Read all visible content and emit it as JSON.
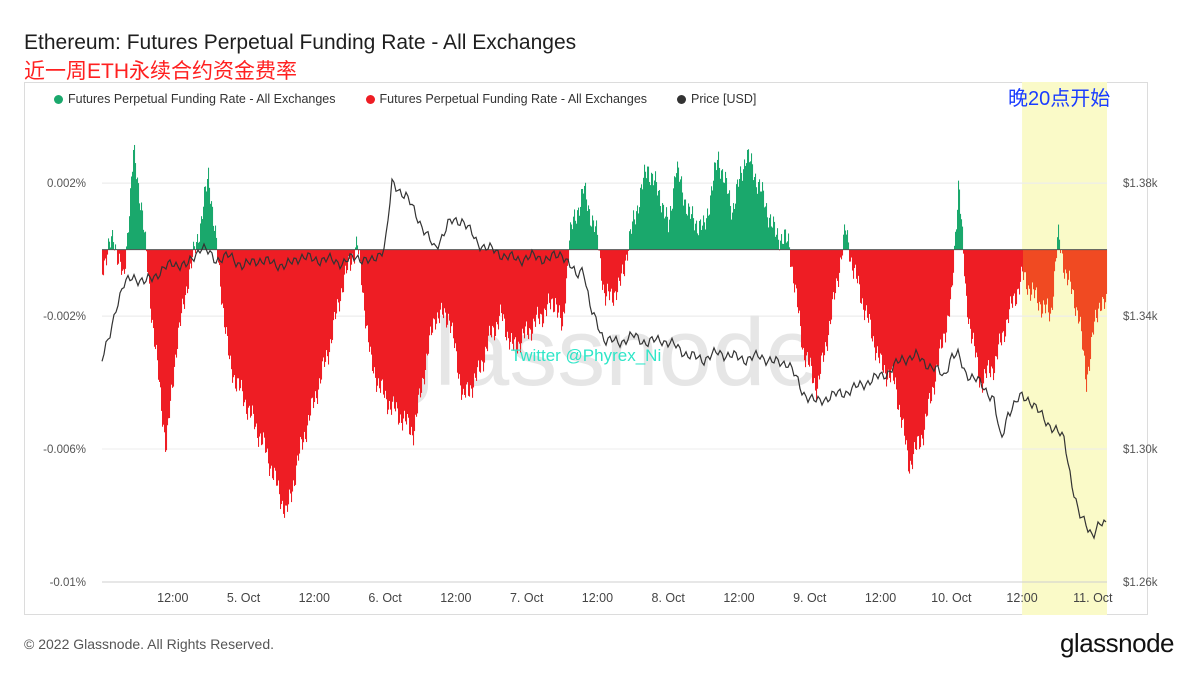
{
  "header": {
    "title": "Ethereum: Futures Perpetual Funding Rate - All Exchanges",
    "subtitle": "近一周ETH永续合约资金费率"
  },
  "annotation": {
    "note": "晚20点开始",
    "watermark_user": "Twitter @Phyrex_Ni",
    "watermark_brand": "glassnode"
  },
  "footer": {
    "copyright": "© 2022 Glassnode. All Rights Reserved.",
    "brand": "glassnode"
  },
  "colors": {
    "positive": "#1aa86c",
    "negative": "#ee1d24",
    "negative_highlight": "#f04a22",
    "price": "#333333",
    "highlight_band": "#fafac8"
  },
  "chart_data": {
    "type": "bar",
    "legend_placement": "top-left",
    "legend": [
      "Futures Perpetual Funding Rate - All Exchanges",
      "Futures Perpetual Funding Rate - All Exchanges",
      "Price [USD]"
    ],
    "x_ticks": [
      "12:00",
      "5. Oct",
      "12:00",
      "6. Oct",
      "12:00",
      "7. Oct",
      "12:00",
      "8. Oct",
      "12:00",
      "9. Oct",
      "12:00",
      "10. Oct",
      "12:00",
      "11. Oct"
    ],
    "x_range_days": [
      4.0,
      11.1
    ],
    "y_left": {
      "ticks": [
        "0.002%",
        "-0.002%",
        "-0.006%",
        "-0.01%"
      ],
      "tick_values": [
        0.002,
        -0.002,
        -0.006,
        -0.01
      ],
      "range": [
        -0.01,
        0.0042
      ]
    },
    "y_right": {
      "ticks": [
        "$1.38k",
        "$1.34k",
        "$1.30k",
        "$1.26k"
      ],
      "tick_values": [
        1380,
        1340,
        1300,
        1260
      ],
      "range": [
        1260,
        1402
      ]
    },
    "highlight_range_days": [
      10.5,
      11.1
    ],
    "funding_rate_keypoints_pct": [
      [
        4.0,
        -0.0005
      ],
      [
        4.08,
        0.0004
      ],
      [
        4.15,
        -0.001
      ],
      [
        4.22,
        0.0029
      ],
      [
        4.28,
        0.0012
      ],
      [
        4.35,
        -0.002
      ],
      [
        4.45,
        -0.006
      ],
      [
        4.52,
        -0.003
      ],
      [
        4.6,
        -0.001
      ],
      [
        4.7,
        0.0009
      ],
      [
        4.75,
        0.0023
      ],
      [
        4.82,
        -0.0005
      ],
      [
        4.9,
        -0.0035
      ],
      [
        5.0,
        -0.0045
      ],
      [
        5.15,
        -0.006
      ],
      [
        5.3,
        -0.008
      ],
      [
        5.4,
        -0.006
      ],
      [
        5.5,
        -0.0045
      ],
      [
        5.6,
        -0.003
      ],
      [
        5.7,
        -0.001
      ],
      [
        5.8,
        0.0002
      ],
      [
        5.9,
        -0.0035
      ],
      [
        6.0,
        -0.0045
      ],
      [
        6.1,
        -0.005
      ],
      [
        6.2,
        -0.0055
      ],
      [
        6.28,
        -0.0035
      ],
      [
        6.35,
        -0.002
      ],
      [
        6.45,
        -0.002
      ],
      [
        6.55,
        -0.0045
      ],
      [
        6.65,
        -0.0038
      ],
      [
        6.75,
        -0.0025
      ],
      [
        6.82,
        -0.002
      ],
      [
        6.9,
        -0.003
      ],
      [
        7.0,
        -0.0025
      ],
      [
        7.1,
        -0.002
      ],
      [
        7.2,
        -0.0015
      ],
      [
        7.25,
        -0.0025
      ],
      [
        7.3,
        0.0004
      ],
      [
        7.4,
        0.0018
      ],
      [
        7.5,
        0.0003
      ],
      [
        7.55,
        -0.0015
      ],
      [
        7.65,
        -0.0012
      ],
      [
        7.75,
        0.0008
      ],
      [
        7.85,
        0.0025
      ],
      [
        7.95,
        0.0015
      ],
      [
        8.0,
        0.0006
      ],
      [
        8.05,
        0.0025
      ],
      [
        8.15,
        0.001
      ],
      [
        8.25,
        0.0006
      ],
      [
        8.35,
        0.0028
      ],
      [
        8.45,
        0.0012
      ],
      [
        8.55,
        0.0029
      ],
      [
        8.65,
        0.0018
      ],
      [
        8.75,
        0.0005
      ],
      [
        8.85,
        0.0002
      ],
      [
        8.95,
        -0.003
      ],
      [
        9.05,
        -0.0042
      ],
      [
        9.15,
        -0.002
      ],
      [
        9.25,
        0.0006
      ],
      [
        9.3,
        -0.0005
      ],
      [
        9.4,
        -0.002
      ],
      [
        9.5,
        -0.0035
      ],
      [
        9.6,
        -0.004
      ],
      [
        9.7,
        -0.0065
      ],
      [
        9.8,
        -0.0055
      ],
      [
        9.9,
        -0.0035
      ],
      [
        10.0,
        -0.0015
      ],
      [
        10.05,
        0.0022
      ],
      [
        10.1,
        -0.0015
      ],
      [
        10.2,
        -0.004
      ],
      [
        10.3,
        -0.0035
      ],
      [
        10.4,
        -0.002
      ],
      [
        10.5,
        -0.0008
      ],
      [
        10.6,
        -0.0015
      ],
      [
        10.7,
        -0.002
      ],
      [
        10.75,
        0.0004
      ],
      [
        10.8,
        -0.0006
      ],
      [
        10.9,
        -0.002
      ],
      [
        10.95,
        -0.004
      ],
      [
        11.0,
        -0.0025
      ],
      [
        11.05,
        -0.0015
      ],
      [
        11.1,
        -0.0018
      ]
    ],
    "price_keypoints_usd": [
      [
        4.0,
        1327
      ],
      [
        4.05,
        1333
      ],
      [
        4.1,
        1343
      ],
      [
        4.15,
        1349
      ],
      [
        4.22,
        1352
      ],
      [
        4.3,
        1350
      ],
      [
        4.4,
        1353
      ],
      [
        4.5,
        1356
      ],
      [
        4.6,
        1355
      ],
      [
        4.7,
        1361
      ],
      [
        4.8,
        1357
      ],
      [
        4.9,
        1358
      ],
      [
        5.0,
        1355
      ],
      [
        5.1,
        1357
      ],
      [
        5.2,
        1356
      ],
      [
        5.3,
        1355
      ],
      [
        5.4,
        1358
      ],
      [
        5.5,
        1357
      ],
      [
        5.6,
        1357
      ],
      [
        5.7,
        1356
      ],
      [
        5.8,
        1358
      ],
      [
        5.9,
        1356
      ],
      [
        6.0,
        1361
      ],
      [
        6.05,
        1380
      ],
      [
        6.15,
        1376
      ],
      [
        6.25,
        1368
      ],
      [
        6.35,
        1360
      ],
      [
        6.45,
        1368
      ],
      [
        6.55,
        1369
      ],
      [
        6.65,
        1362
      ],
      [
        6.75,
        1360
      ],
      [
        6.85,
        1358
      ],
      [
        6.95,
        1357
      ],
      [
        7.05,
        1358
      ],
      [
        7.15,
        1357
      ],
      [
        7.25,
        1359
      ],
      [
        7.35,
        1352
      ],
      [
        7.4,
        1355
      ],
      [
        7.45,
        1342
      ],
      [
        7.55,
        1333
      ],
      [
        7.65,
        1332
      ],
      [
        7.75,
        1334
      ],
      [
        7.85,
        1332
      ],
      [
        7.95,
        1333
      ],
      [
        8.05,
        1331
      ],
      [
        8.15,
        1328
      ],
      [
        8.25,
        1327
      ],
      [
        8.35,
        1329
      ],
      [
        8.45,
        1328
      ],
      [
        8.55,
        1327
      ],
      [
        8.65,
        1328
      ],
      [
        8.75,
        1326
      ],
      [
        8.85,
        1326
      ],
      [
        8.95,
        1317
      ],
      [
        9.05,
        1314
      ],
      [
        9.15,
        1316
      ],
      [
        9.25,
        1317
      ],
      [
        9.35,
        1319
      ],
      [
        9.45,
        1321
      ],
      [
        9.55,
        1323
      ],
      [
        9.65,
        1327
      ],
      [
        9.75,
        1328
      ],
      [
        9.85,
        1325
      ],
      [
        9.95,
        1322
      ],
      [
        10.0,
        1328
      ],
      [
        10.05,
        1328
      ],
      [
        10.1,
        1323
      ],
      [
        10.2,
        1320
      ],
      [
        10.3,
        1315
      ],
      [
        10.35,
        1302
      ],
      [
        10.4,
        1311
      ],
      [
        10.5,
        1316
      ],
      [
        10.55,
        1315
      ],
      [
        10.6,
        1312
      ],
      [
        10.7,
        1307
      ],
      [
        10.8,
        1303
      ],
      [
        10.85,
        1290
      ],
      [
        10.9,
        1280
      ],
      [
        10.95,
        1278
      ],
      [
        11.0,
        1274
      ],
      [
        11.05,
        1277
      ],
      [
        11.1,
        1278
      ]
    ]
  }
}
